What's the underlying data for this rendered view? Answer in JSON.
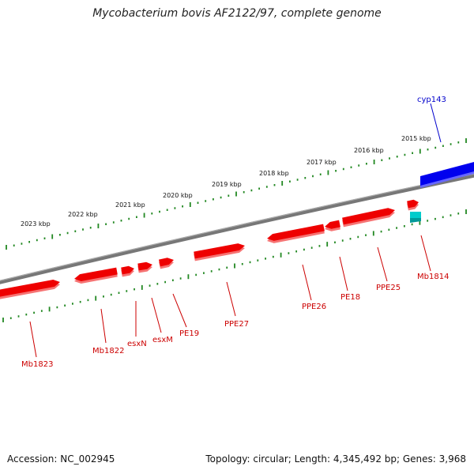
{
  "title": "Mycobacterium bovis AF2122/97, complete genome",
  "footer": {
    "accession": "Accession: NC_002945",
    "summary": "Topology: circular; Length: 4,345,492 bp; Genes: 3,968"
  },
  "colors": {
    "gene": "#ee0000",
    "label_red": "#cc0000",
    "label_blue": "#0000cc",
    "highlight_gene": "#0000ee",
    "small_feature": "#00cccc",
    "tick": "#228822",
    "backbone": "#777777"
  },
  "scale": {
    "unit": "kbp",
    "labels": [
      "2015 kbp",
      "2016 kbp",
      "2017 kbp",
      "2018 kbp",
      "2019 kbp",
      "2020 kbp",
      "2021 kbp",
      "2022 kbp",
      "2023 kbp"
    ]
  },
  "genes": {
    "labels": [
      "cyp143",
      "Mb1814",
      "PPE25",
      "PE18",
      "PPE26",
      "PPE27",
      "PE19",
      "esxM",
      "esxN",
      "Mb1822",
      "Mb1823"
    ]
  }
}
